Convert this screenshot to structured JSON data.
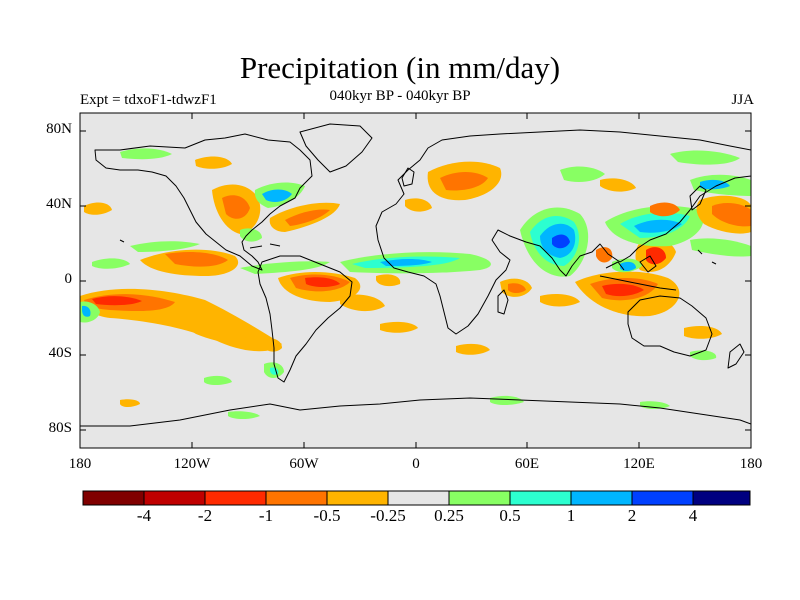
{
  "header": {
    "title": "Precipitation (in mm/day)",
    "subtitle": "040kyr BP - 040kyr BP",
    "experiment": "Expt = tdxoF1-tdwzF1",
    "season": "JJA"
  },
  "axes": {
    "y_labels": [
      "80N",
      "40N",
      "0",
      "40S",
      "80S"
    ],
    "x_labels": [
      "180",
      "120W",
      "60W",
      "0",
      "60E",
      "120E",
      "180"
    ]
  },
  "colorbar": {
    "colors": [
      "#800000",
      "#c00000",
      "#ff2a00",
      "#ff7400",
      "#ffb400",
      "#e6e6e6",
      "#88ff63",
      "#2cffd0",
      "#00b6ff",
      "#0040ff",
      "#000080"
    ],
    "labels": [
      "-4",
      "-2",
      "-1",
      "-0.5",
      "-0.25",
      "0.25",
      "0.5",
      "1",
      "2",
      "4"
    ]
  },
  "chart_data": {
    "type": "heatmap",
    "title": "Precipitation (in mm/day)",
    "subtitle": "040kyr BP - 040kyr BP",
    "xlim": [
      -180,
      180
    ],
    "ylim": [
      -90,
      90
    ],
    "x_ticks": [
      -180,
      -120,
      -60,
      0,
      60,
      120,
      180
    ],
    "y_ticks": [
      80,
      40,
      0,
      -40,
      -80
    ],
    "levels": [
      -4,
      -2,
      -1,
      -0.5,
      -0.25,
      0.25,
      0.5,
      1,
      2,
      4
    ],
    "anomaly_regions": [
      {
        "lon": [
          -180,
          -130
        ],
        "lat": [
          -8,
          -22
        ],
        "value": -1
      },
      {
        "lon": [
          -165,
          -85
        ],
        "lat": [
          -15,
          -42
        ],
        "value": -0.5
      },
      {
        "lon": [
          -140,
          -100
        ],
        "lat": [
          18,
          10
        ],
        "value": -1
      },
      {
        "lon": [
          -78,
          -45
        ],
        "lat": [
          6,
          -8
        ],
        "value": -2
      },
      {
        "lon": [
          -85,
          -60
        ],
        "lat": [
          45,
          32
        ],
        "value": -0.5
      },
      {
        "lon": [
          -65,
          -20
        ],
        "lat": [
          10,
          2
        ],
        "value": 1
      },
      {
        "lon": [
          -15,
          40
        ],
        "lat": [
          13,
          7
        ],
        "value": 1
      },
      {
        "lon": [
          5,
          40
        ],
        "lat": [
          60,
          40
        ],
        "value": -0.5
      },
      {
        "lon": [
          70,
          90
        ],
        "lat": [
          35,
          10
        ],
        "value": 2
      },
      {
        "lon": [
          95,
          115
        ],
        "lat": [
          15,
          -5
        ],
        "value": -2
      },
      {
        "lon": [
          95,
          155
        ],
        "lat": [
          -5,
          -25
        ],
        "value": -0.5
      },
      {
        "lon": [
          110,
          160
        ],
        "lat": [
          40,
          20
        ],
        "value": 1
      },
      {
        "lon": [
          160,
          180
        ],
        "lat": [
          42,
          28
        ],
        "value": -1
      },
      {
        "lon": [
          -180,
          -160
        ],
        "lat": [
          -12,
          -25
        ],
        "value": 1
      },
      {
        "lon": [
          45,
          65
        ],
        "lat": [
          -2,
          -10
        ],
        "value": -0.5
      }
    ]
  }
}
